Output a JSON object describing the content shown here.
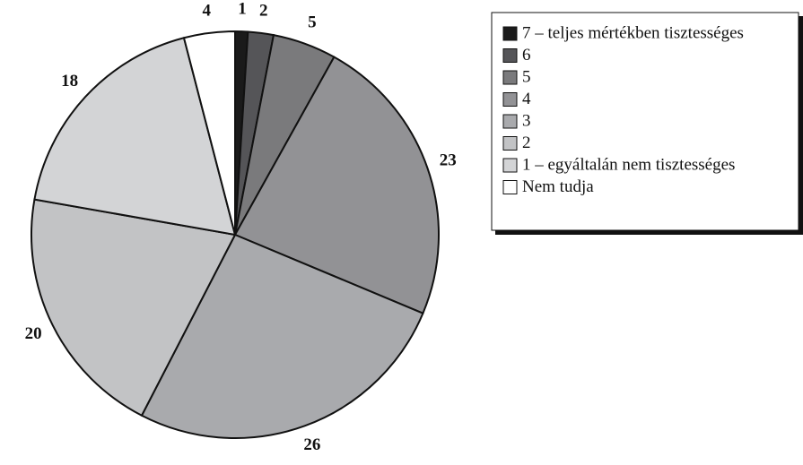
{
  "chart_data": {
    "type": "pie",
    "categories": [
      "7 – teljes mértékben tisztességes",
      "6",
      "5",
      "4",
      "3",
      "2",
      "1 – egyáltalán nem tisztességes",
      "Nem tudja"
    ],
    "values": [
      1,
      2,
      5,
      23,
      26,
      20,
      18,
      4
    ],
    "colors": [
      "#1a1a1a",
      "#555558",
      "#7a7a7c",
      "#929295",
      "#a9aaad",
      "#c2c3c5",
      "#d3d4d6",
      "#ffffff"
    ],
    "legend": "upper right"
  }
}
